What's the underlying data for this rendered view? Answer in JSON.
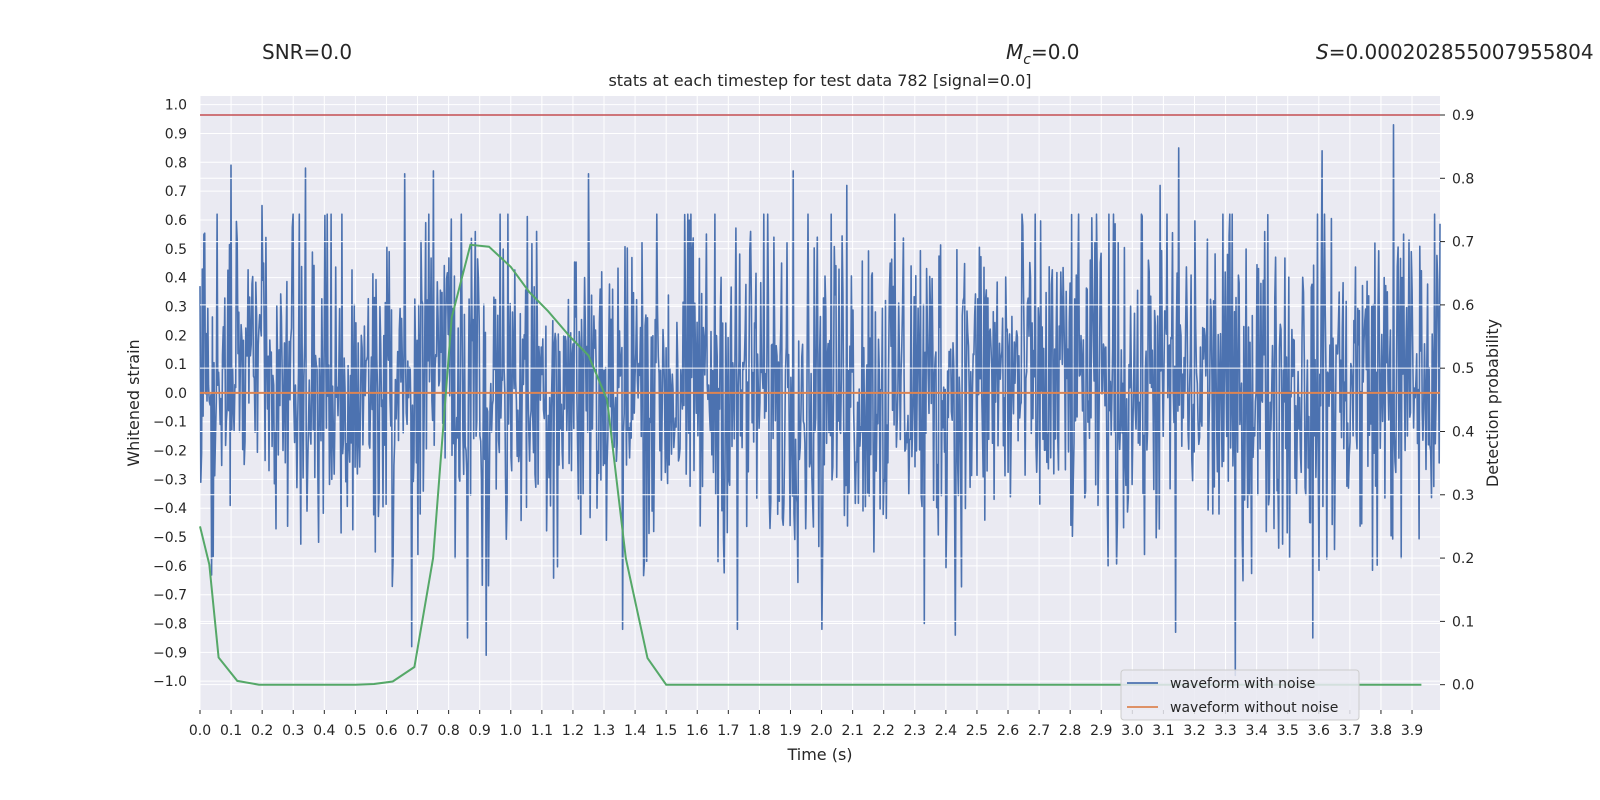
{
  "header": {
    "snr_label": "SNR=",
    "snr_value": "0.0",
    "mc_symbol": "M",
    "mc_subscript": "c",
    "mc_value": "=0.0",
    "s_symbol": "S",
    "s_value": "=0.000202855007955804"
  },
  "chart_data": {
    "type": "line",
    "title": "stats at each timestep for test data 782 [signal=0.0]",
    "xlabel": "Time (s)",
    "ylabel": "Whitened strain",
    "y2label": "Detection probability",
    "xlim": [
      0.0,
      3.99
    ],
    "ylim": [
      -1.1,
      1.03
    ],
    "y2lim": [
      -0.04,
      0.93
    ],
    "x_ticks": [
      0.0,
      0.1,
      0.2,
      0.3,
      0.4,
      0.5,
      0.6,
      0.7,
      0.8,
      0.9,
      1.0,
      1.1,
      1.2,
      1.3,
      1.4,
      1.5,
      1.6,
      1.7,
      1.8,
      1.9,
      2.0,
      2.1,
      2.2,
      2.3,
      2.4,
      2.5,
      2.6,
      2.7,
      2.8,
      2.9,
      3.0,
      3.1,
      3.2,
      3.3,
      3.4,
      3.5,
      3.6,
      3.7,
      3.8,
      3.9
    ],
    "y_ticks": [
      1.0,
      0.9,
      0.8,
      0.7,
      0.6,
      0.5,
      0.4,
      0.3,
      0.2,
      0.1,
      0.0,
      -0.1,
      -0.2,
      -0.3,
      -0.4,
      -0.5,
      -0.6,
      -0.7,
      -0.8,
      -0.9,
      -1.0
    ],
    "y2_ticks": [
      0.9,
      0.8,
      0.7,
      0.6,
      0.5,
      0.4,
      0.3,
      0.2,
      0.1,
      0.0
    ],
    "threshold": 0.9,
    "grid": true,
    "legend_position": "bottom-right",
    "series": [
      {
        "name": "waveform with noise",
        "color": "#4c72b0",
        "axis": "left",
        "spikes": [
          {
            "x": 0.1,
            "y": 0.79
          },
          {
            "x": 0.2,
            "y": 0.65
          },
          {
            "x": 0.34,
            "y": 0.78
          },
          {
            "x": 0.66,
            "y": 0.76
          },
          {
            "x": 0.75,
            "y": 0.77
          },
          {
            "x": 1.25,
            "y": 0.76
          },
          {
            "x": 1.91,
            "y": 0.77
          },
          {
            "x": 2.08,
            "y": 0.72
          },
          {
            "x": 3.09,
            "y": 0.72
          },
          {
            "x": 3.15,
            "y": 0.85
          },
          {
            "x": 3.61,
            "y": 0.84
          },
          {
            "x": 3.84,
            "y": 0.93
          },
          {
            "x": 0.68,
            "y": -0.88
          },
          {
            "x": 0.86,
            "y": -0.85
          },
          {
            "x": 0.92,
            "y": -0.91
          },
          {
            "x": 1.36,
            "y": -0.82
          },
          {
            "x": 1.73,
            "y": -0.82
          },
          {
            "x": 2.0,
            "y": -0.82
          },
          {
            "x": 2.33,
            "y": -0.8
          },
          {
            "x": 2.43,
            "y": -0.84
          },
          {
            "x": 3.14,
            "y": -0.83
          },
          {
            "x": 3.33,
            "y": -0.98
          },
          {
            "x": 3.58,
            "y": -0.85
          }
        ],
        "envelope": [
          0.45,
          -0.4
        ]
      },
      {
        "name": "waveform without noise",
        "color": "#dd8452",
        "axis": "left",
        "x": [
          0.0,
          3.99
        ],
        "y": [
          0.0,
          0.0
        ]
      },
      {
        "name": "",
        "color": "#55a868",
        "axis": "right",
        "x": [
          0.0,
          0.03,
          0.06,
          0.12,
          0.19,
          0.25,
          0.31,
          0.37,
          0.44,
          0.5,
          0.56,
          0.62,
          0.69,
          0.75,
          0.81,
          0.87,
          0.93,
          1.0,
          1.06,
          1.12,
          1.19,
          1.25,
          1.31,
          1.37,
          1.44,
          1.5,
          1.56,
          1.62,
          2.0,
          2.5,
          3.0,
          3.5,
          3.93
        ],
        "y": [
          0.25,
          0.19,
          0.043,
          0.006,
          0.0,
          0.0,
          0.0,
          0.0,
          0.0,
          0.0,
          0.001,
          0.005,
          0.028,
          0.2,
          0.58,
          0.695,
          0.692,
          0.66,
          0.62,
          0.59,
          0.55,
          0.52,
          0.45,
          0.2,
          0.042,
          0.0,
          0.0,
          0.0,
          0.0,
          0.0,
          0.0,
          0.0,
          0.0
        ]
      }
    ]
  }
}
